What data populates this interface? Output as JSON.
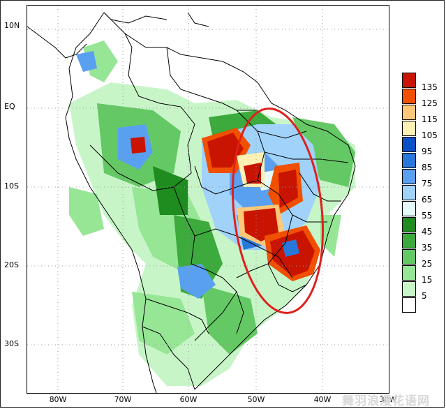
{
  "map": {
    "latitude_labels": [
      "10N",
      "EQ",
      "10S",
      "20S",
      "30S"
    ],
    "longitude_labels": [
      "80W",
      "70W",
      "60W",
      "50W",
      "40W",
      "30W"
    ],
    "gridlines": "dotted",
    "highlight": {
      "shape": "ellipse",
      "color": "#e0201c",
      "region": "Southeast / Central Brazil"
    }
  },
  "legend": {
    "orientation": "vertical",
    "placement": "right",
    "levels": [
      {
        "label": "135",
        "color": "#c81400"
      },
      {
        "label": "125",
        "color": "#f05000"
      },
      {
        "label": "115",
        "color": "#ffc878"
      },
      {
        "label": "105",
        "color": "#fff0b4"
      },
      {
        "label": "95",
        "color": "#0a50c8"
      },
      {
        "label": "85",
        "color": "#2878dc"
      },
      {
        "label": "75",
        "color": "#5aa0f0"
      },
      {
        "label": "65",
        "color": "#a0d2fa"
      },
      {
        "label": "55",
        "color": "#e6fafa"
      },
      {
        "label": "45",
        "color": "#1e8c1e"
      },
      {
        "label": "35",
        "color": "#3caa3c"
      },
      {
        "label": "25",
        "color": "#64c864"
      },
      {
        "label": "15",
        "color": "#96e696"
      },
      {
        "label": "5",
        "color": "#c8f5c8"
      },
      {
        "label": "",
        "color": "#ffffff"
      }
    ]
  },
  "watermark": "舞羽浪漫花语网"
}
